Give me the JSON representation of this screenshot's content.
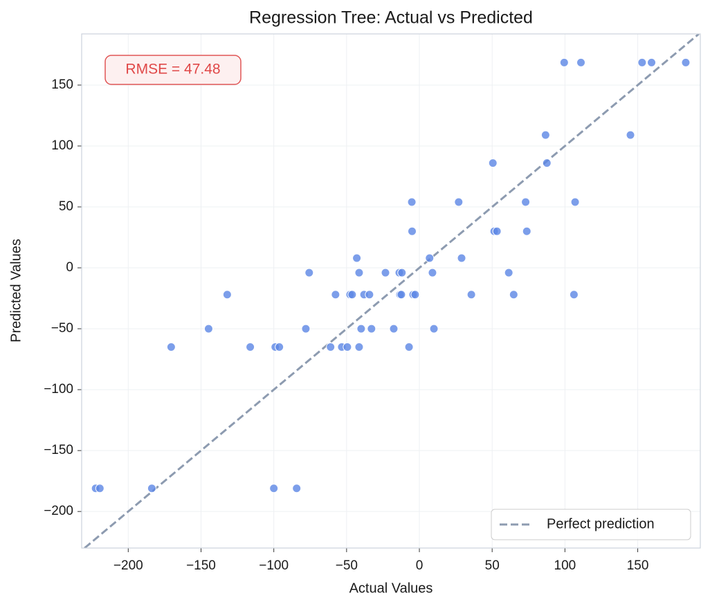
{
  "chart_data": {
    "type": "scatter",
    "title": "Regression Tree: Actual vs Predicted",
    "x_label": "Actual Values",
    "y_label": "Predicted Values",
    "annotation": "RMSE = 47.48",
    "color": "#5b86e5",
    "x": [
      99.5,
      111,
      153,
      159.5,
      183,
      86.7,
      145,
      50.5,
      87.6,
      -5.2,
      27,
      73,
      107,
      -5,
      51.4,
      53.3,
      73.8,
      -43,
      7,
      29,
      -75.7,
      -41.4,
      -23.3,
      -13.8,
      -12,
      9,
      61.4,
      -132,
      -57.6,
      -47.6,
      -46.2,
      -38,
      -34.3,
      -13.3,
      -12.4,
      -4.3,
      -2.9,
      35.7,
      64.8,
      106.2,
      -144.8,
      -78,
      -40,
      -32.9,
      -17.6,
      10,
      -170.5,
      -116.2,
      -99,
      -96.2,
      -61,
      -53.3,
      -49.5,
      -41.4,
      -7.1,
      -222.4,
      -219.5,
      -183.8,
      -100,
      -84.3
    ],
    "values": [
      168.5,
      168.5,
      168.5,
      168.5,
      168.5,
      109,
      109,
      86,
      86,
      54,
      54,
      54,
      54,
      30,
      30,
      30,
      30,
      8,
      8,
      8,
      -4,
      -4,
      -4,
      -4,
      -4,
      -4,
      -4,
      -22,
      -22,
      -22,
      -22,
      -22,
      -22,
      -22,
      -22,
      -22,
      -22,
      -22,
      -22,
      -22,
      -50,
      -50,
      -50,
      -50,
      -50,
      -50,
      -65,
      -65,
      -65,
      -65,
      -65,
      -65,
      -65,
      -65,
      -65,
      -181,
      -181,
      -181,
      -181,
      -181
    ],
    "reference_line": {
      "name": "Perfect prediction",
      "color": "#8d9bb0"
    },
    "legend": "lower right",
    "grid": true,
    "xlim": [
      -232,
      193
    ],
    "ylim": [
      -230,
      192
    ],
    "xticks": [
      {
        "value": -200,
        "label": "−200"
      },
      {
        "value": -150,
        "label": "−150"
      },
      {
        "value": -100,
        "label": "−100"
      },
      {
        "value": -50,
        "label": "−50"
      },
      0,
      50,
      100,
      150
    ],
    "yticks": [
      {
        "value": -200,
        "label": "−200"
      },
      {
        "value": -150,
        "label": "−150"
      },
      {
        "value": -100,
        "label": "−100"
      },
      {
        "value": -50,
        "label": "−50"
      },
      0,
      50,
      100,
      150
    ]
  }
}
